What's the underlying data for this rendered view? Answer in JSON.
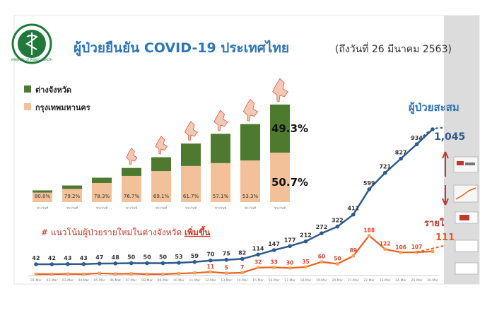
{
  "header": {
    "title": "ผู้ป่วยยืนยัน COVID-19 ประเทศไทย",
    "date_note": "(ถึงวันที่ 26 มีนาคม 2563)"
  },
  "logo": {
    "text": "MINISTRY OF PUBLIC HEALTH",
    "icon": "ministry-of-public-health-seal"
  },
  "colors": {
    "provinces": "#4e7a2f",
    "bangkok": "#f3c199",
    "cumulative_line": "#2e5a8c",
    "daily_line": "#e8601c",
    "daily_marker": "#f4a460",
    "daily_label": "#d9442c",
    "annotation_red": "#c0392b",
    "accent_blue": "#2e75b6"
  },
  "annotations": {
    "trend_text": "# แนวโน้มผู้ป่วยรายใหม่ในต่างจังหวัด",
    "trend_emphasis": "เพิ่มขึ้น",
    "cumulative_label": "ผู้ป่วยสะสม",
    "cumulative_total": "1,045",
    "daily_label": "รายใ",
    "daily_total": "111"
  },
  "chart_data": [
    {
      "type": "bar",
      "stacked": true,
      "legend": {
        "placement": "top-left"
      },
      "series": [
        {
          "name": "ต่างจังหวัด",
          "color": "#4e7a2f",
          "pct": [
            19.2,
            20.8,
            21.7,
            23.3,
            30.9,
            38.3,
            42.9,
            46.7,
            49.3
          ]
        },
        {
          "name": "กรุงเทพมหานคร",
          "color": "#f3c199",
          "pct": [
            80.8,
            79.2,
            78.3,
            76.7,
            69.1,
            61.7,
            57.1,
            53.3,
            50.7
          ]
        }
      ],
      "bar_totals_relative": [
        0.12,
        0.17,
        0.25,
        0.35,
        0.46,
        0.6,
        0.7,
        0.8,
        1.0
      ],
      "big_labels": {
        "provinces": "49.3%",
        "bangkok": "50.7%"
      },
      "inner_labels": [
        "80.8%",
        "79.2%",
        "78.3%",
        "76.7%",
        "69.1%",
        "61.7%",
        "57.1%",
        "53.3%",
        ""
      ],
      "x_tick_labels": [
        "ช่วงวันที่",
        "ช่วงวันที่",
        "ช่วงวันที่",
        "ช่วงวันที่",
        "ช่วงวันที่",
        "ช่วงวันที่",
        "ช่วงวันที่",
        "ช่วงวันที่",
        "ช่วงวันที่"
      ]
    },
    {
      "type": "line",
      "categories": [
        "01-Mar",
        "02-Mar",
        "03-Mar",
        "04-Mar",
        "05-Mar",
        "06-Mar",
        "07-Mar",
        "08-Mar",
        "09-Mar",
        "10-Mar",
        "11-Mar",
        "12-Mar",
        "13-Mar",
        "14-Mar",
        "15-Mar",
        "16-Mar",
        "17-Mar",
        "18-Mar",
        "19-Mar",
        "20-Mar",
        "21-Mar",
        "22-Mar",
        "23-Mar",
        "24-Mar",
        "25-Mar",
        "26-Mar"
      ],
      "series": [
        {
          "name": "ผู้ป่วยสะสม",
          "values": [
            42,
            42,
            43,
            43,
            47,
            48,
            50,
            50,
            50,
            53,
            59,
            70,
            75,
            82,
            114,
            147,
            177,
            212,
            272,
            322,
            411,
            599,
            721,
            827,
            934,
            1045
          ],
          "labels": [
            "42",
            "42",
            "43",
            "43",
            "47",
            "48",
            "50",
            "50",
            "50",
            "53",
            "59",
            "70",
            "75",
            "82",
            "114",
            "147",
            "177",
            "212",
            "272",
            "322",
            "411",
            "599",
            "721",
            "827",
            "934",
            ""
          ]
        },
        {
          "name": "รายใหม่",
          "values": [
            0,
            0,
            1,
            0,
            4,
            1,
            2,
            0,
            0,
            3,
            6,
            11,
            5,
            7,
            32,
            33,
            30,
            35,
            60,
            50,
            89,
            188,
            122,
            106,
            107,
            111
          ],
          "labels": [
            "",
            "",
            "",
            "",
            "",
            "",
            "",
            "",
            "",
            "",
            "",
            "11",
            "5",
            "7",
            "32",
            "33",
            "30",
            "35",
            "60",
            "50",
            "89",
            "188",
            "122",
            "106",
            "107",
            ""
          ]
        }
      ]
    }
  ]
}
